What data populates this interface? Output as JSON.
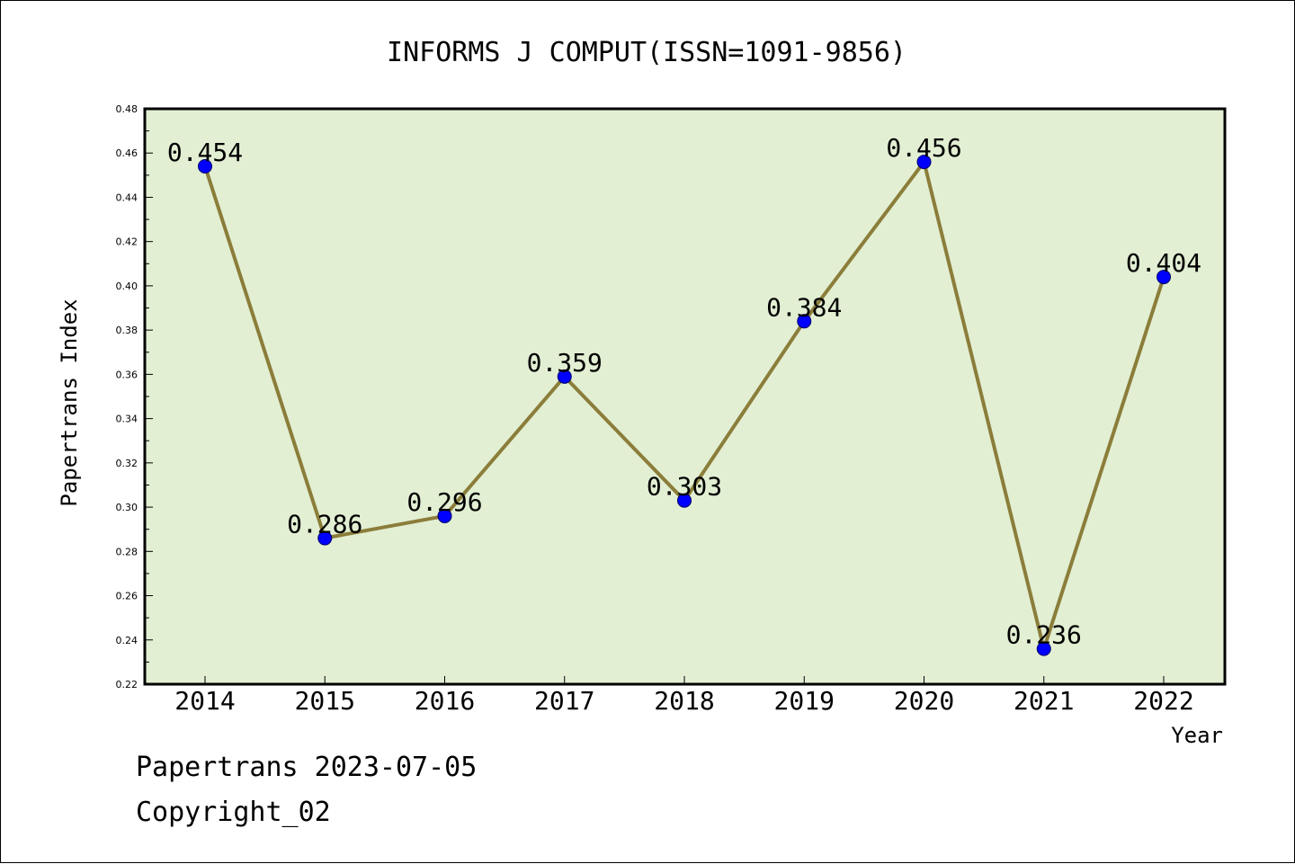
{
  "footer": {
    "line1": "Papertrans 2023-07-05",
    "line2": "Copyright_02"
  },
  "chart_data": {
    "type": "line",
    "title": "INFORMS J COMPUT(ISSN=1091-9856)",
    "xlabel": "Year",
    "ylabel": "Papertrans Index",
    "categories": [
      "2014",
      "2015",
      "2016",
      "2017",
      "2018",
      "2019",
      "2020",
      "2021",
      "2022"
    ],
    "series": [
      {
        "values": [
          0.454,
          0.286,
          0.296,
          0.359,
          0.303,
          0.384,
          0.456,
          0.236,
          0.404
        ],
        "labels": [
          "0.454",
          "0.286",
          "0.296",
          "0.359",
          "0.303",
          "0.384",
          "0.456",
          "0.236",
          "0.404"
        ]
      }
    ],
    "ylim": [
      0.22,
      0.48
    ],
    "yticks": [
      "0.22",
      "0.24",
      "0.26",
      "0.28",
      "0.30",
      "0.32",
      "0.34",
      "0.36",
      "0.38",
      "0.40",
      "0.42",
      "0.44",
      "0.46",
      "0.48"
    ],
    "grid": false,
    "legend": "none",
    "colors": {
      "plot_background": "#e2efd3",
      "line": "#8b7d3a",
      "marker": "#0000ff"
    }
  }
}
